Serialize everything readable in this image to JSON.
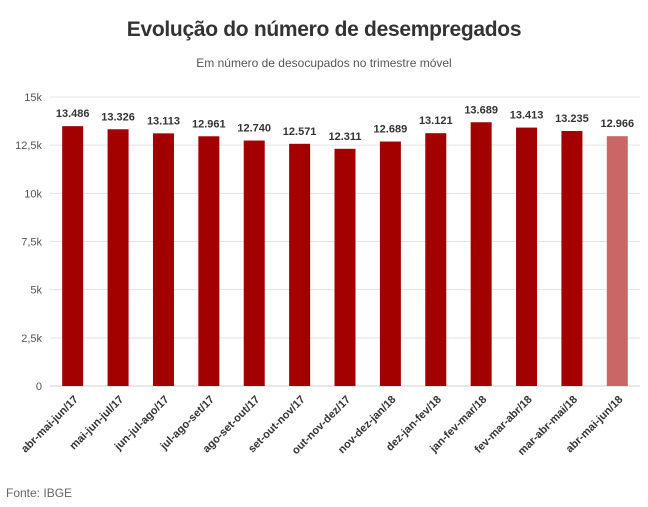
{
  "chart_data": {
    "type": "bar",
    "title": "Evolução do número de desempregados",
    "subtitle": "Em número de desocupados no trimestre móvel",
    "source": "Fonte: IBGE",
    "categories": [
      "abr-mai-jun/17",
      "mai-jun-jul/17",
      "jun-jul-ago/17",
      "jul-ago-set/17",
      "ago-set-out/17",
      "set-out-nov/17",
      "out-nov-dez/17",
      "nov-dez-jan/18",
      "dez-jan-fev/18",
      "jan-fev-mar/18",
      "fev-mar-abr/18",
      "mar-abr-mai/18",
      "abr-mai-jun/18"
    ],
    "values": [
      13486,
      13326,
      13113,
      12961,
      12740,
      12571,
      12311,
      12689,
      13121,
      13689,
      13413,
      13235,
      12966
    ],
    "value_labels": [
      "13.486",
      "13.326",
      "13.113",
      "12.961",
      "12.740",
      "12.571",
      "12.311",
      "12.689",
      "13.121",
      "13.689",
      "13.413",
      "13.235",
      "12.966"
    ],
    "ylim": [
      0,
      15000
    ],
    "yticks": [
      0,
      2500,
      5000,
      7500,
      10000,
      12500,
      15000
    ],
    "ytick_labels": [
      "0",
      "2,5k",
      "5k",
      "7,5k",
      "10k",
      "12,5k",
      "15k"
    ],
    "grid": true,
    "colors": {
      "bar": "#a30000",
      "bar_highlight": "#c96666",
      "grid": "#e3e3e3"
    },
    "highlight_index": 12
  }
}
